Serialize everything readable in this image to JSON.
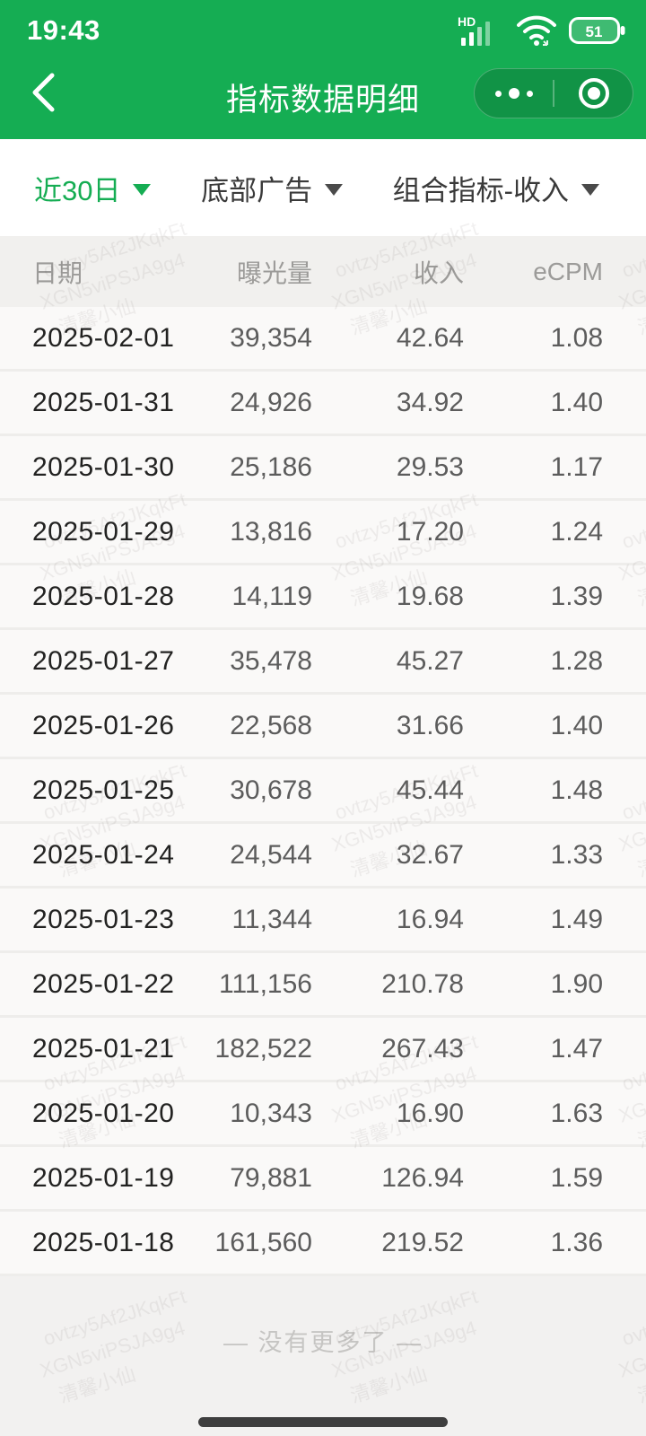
{
  "status_bar": {
    "time": "19:43",
    "network_badge": "HD",
    "battery_level": "51"
  },
  "nav": {
    "title": "指标数据明细"
  },
  "filters": [
    {
      "label": "近30日",
      "active": true
    },
    {
      "label": "底部广告",
      "active": false
    },
    {
      "label": "组合指标-收入",
      "active": false
    }
  ],
  "table": {
    "columns": [
      "日期",
      "曝光量",
      "收入",
      "eCPM"
    ],
    "rows": [
      [
        "2025-02-01",
        "39,354",
        "42.64",
        "1.08"
      ],
      [
        "2025-01-31",
        "24,926",
        "34.92",
        "1.40"
      ],
      [
        "2025-01-30",
        "25,186",
        "29.53",
        "1.17"
      ],
      [
        "2025-01-29",
        "13,816",
        "17.20",
        "1.24"
      ],
      [
        "2025-01-28",
        "14,119",
        "19.68",
        "1.39"
      ],
      [
        "2025-01-27",
        "35,478",
        "45.27",
        "1.28"
      ],
      [
        "2025-01-26",
        "22,568",
        "31.66",
        "1.40"
      ],
      [
        "2025-01-25",
        "30,678",
        "45.44",
        "1.48"
      ],
      [
        "2025-01-24",
        "24,544",
        "32.67",
        "1.33"
      ],
      [
        "2025-01-23",
        "11,344",
        "16.94",
        "1.49"
      ],
      [
        "2025-01-22",
        "111,156",
        "210.78",
        "1.90"
      ],
      [
        "2025-01-21",
        "182,522",
        "267.43",
        "1.47"
      ],
      [
        "2025-01-20",
        "10,343",
        "16.90",
        "1.63"
      ],
      [
        "2025-01-19",
        "79,881",
        "126.94",
        "1.59"
      ],
      [
        "2025-01-18",
        "161,560",
        "219.52",
        "1.36"
      ]
    ]
  },
  "footer": {
    "no_more": "—  没有更多了  —"
  },
  "watermark": {
    "lines": [
      "ovtzy5Af2JKqkFt",
      "XGN5viPSJA9g4",
      "清馨小仙"
    ]
  },
  "icons": {
    "back": "back-chevron-icon",
    "more": "more-dots-icon",
    "capsule_target": "target-circle-icon",
    "signal": "cell-signal-icon",
    "wifi": "wifi-icon",
    "battery": "battery-icon"
  },
  "colors": {
    "header_green": "#15ad53",
    "accent_green": "#15ad53",
    "page_bg": "#f2f1f0",
    "row_bg": "#faf9f8",
    "header_row_bg": "#f1f0ee",
    "date_text": "#222221",
    "value_text": "#5c5c5c",
    "muted_text": "#9c9b99"
  }
}
